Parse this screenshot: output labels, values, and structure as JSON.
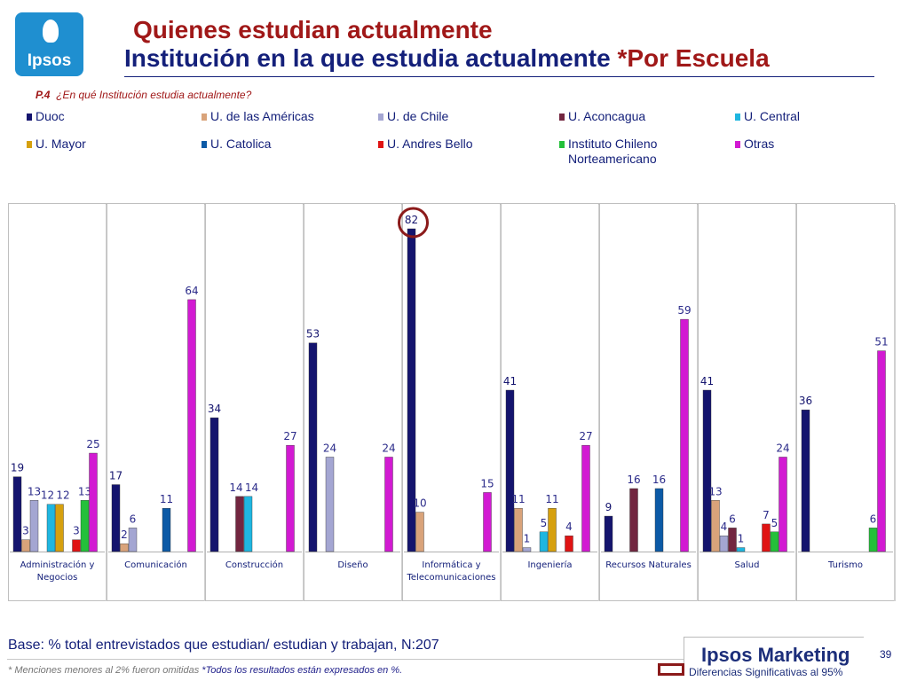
{
  "brand": {
    "logo_text": "Ipsos",
    "name": "Ipsos Marketing"
  },
  "header": {
    "title_line1": "Quienes estudian actualmente",
    "title_line2": "Institución en la que estudia actualmente",
    "title_line2_highlight": "*Por Escuela"
  },
  "question": {
    "code": "P.4",
    "text": "¿En qué Institución estudia actualmente?"
  },
  "footer": {
    "base": "Base: % total entrevistados que estudian/ estudian y trabajan, N:207",
    "note1": "* Menciones menores al 2% fueron omitidas",
    "note2": "*Todos los resultados están expresados en %.",
    "significance": "Diferencias Significativas al 95%",
    "page": "39"
  },
  "chart_data": {
    "type": "bar",
    "grouping": "panels",
    "ylim": [
      0,
      85
    ],
    "grid": false,
    "legend_position": "top",
    "categories": [
      "Administración y Negocios",
      "Comunicación",
      "Construcción",
      "Diseño",
      "Informática y Telecomunicaciones",
      "Ingeniería",
      "Recursos Naturales",
      "Salud",
      "Turismo"
    ],
    "series": [
      {
        "name": "Duoc",
        "color": "#14146e",
        "values": [
          19,
          17,
          34,
          53,
          82,
          41,
          9,
          41,
          36
        ]
      },
      {
        "name": "U. de las Américas",
        "color": "#d9a37a",
        "values": [
          3,
          2,
          null,
          null,
          10,
          11,
          null,
          13,
          null
        ]
      },
      {
        "name": "U. de Chile",
        "color": "#a4a6d2",
        "values": [
          13,
          6,
          null,
          24,
          null,
          1,
          null,
          4,
          null
        ]
      },
      {
        "name": "U. Aconcagua",
        "color": "#722640",
        "values": [
          null,
          null,
          14,
          null,
          null,
          null,
          16,
          6,
          null
        ]
      },
      {
        "name": "U. Central",
        "color": "#1fb6e0",
        "values": [
          12,
          null,
          14,
          null,
          null,
          5,
          null,
          1,
          null
        ]
      },
      {
        "name": "U. Mayor",
        "color": "#d6a00e",
        "values": [
          12,
          null,
          null,
          null,
          null,
          11,
          null,
          null,
          null
        ]
      },
      {
        "name": "U. Catolica",
        "color": "#0c5aa6",
        "values": [
          null,
          11,
          null,
          null,
          null,
          null,
          16,
          null,
          null
        ]
      },
      {
        "name": "U. Andres Bello",
        "color": "#e01414",
        "values": [
          3,
          null,
          null,
          null,
          null,
          4,
          null,
          7,
          null
        ]
      },
      {
        "name": "Instituto Chileno\nNorteamericano",
        "color": "#24c03a",
        "values": [
          13,
          null,
          null,
          null,
          null,
          null,
          null,
          5,
          6
        ]
      },
      {
        "name": "Otras",
        "color": "#d21ad2",
        "values": [
          25,
          64,
          27,
          24,
          15,
          27,
          59,
          24,
          51
        ]
      }
    ],
    "highlight": {
      "category": "Informática y Telecomunicaciones",
      "series": "Duoc",
      "value": 82,
      "color": "#8b1a1a"
    }
  }
}
